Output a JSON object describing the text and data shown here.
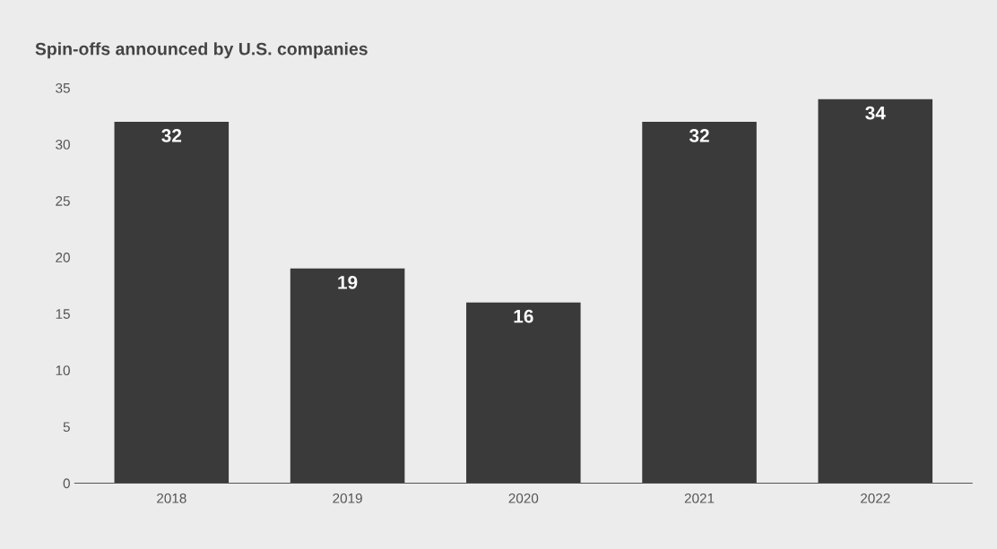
{
  "chart_data": {
    "type": "bar",
    "title": "Spin-offs announced by U.S. companies",
    "categories": [
      "2018",
      "2019",
      "2020",
      "2021",
      "2022"
    ],
    "values": [
      32,
      19,
      16,
      32,
      34
    ],
    "color": "#3a3a3a",
    "ylim": [
      0,
      35
    ],
    "yticks": [
      0,
      5,
      10,
      15,
      20,
      25,
      30,
      35
    ],
    "data_labels": true,
    "grid": false,
    "legend": false
  }
}
